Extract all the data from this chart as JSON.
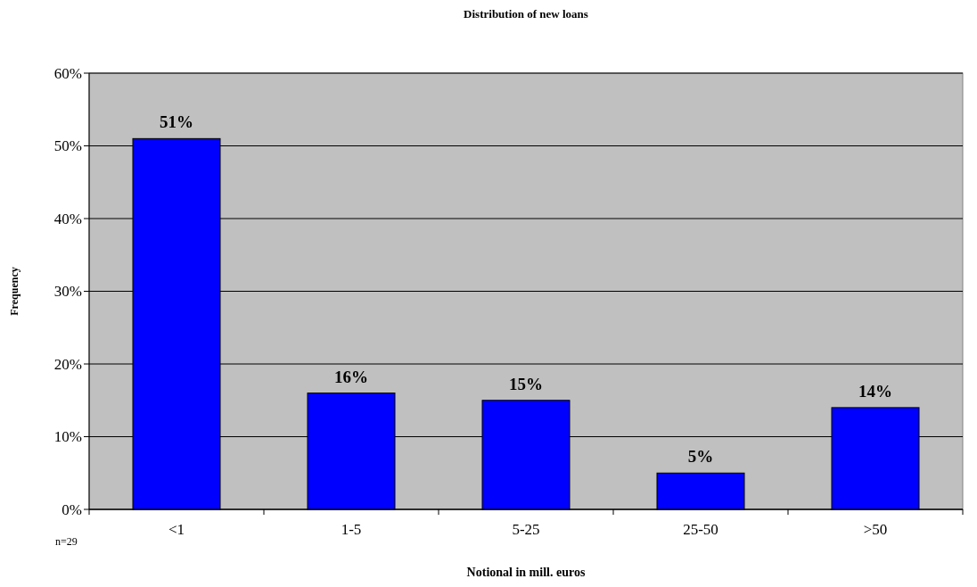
{
  "chart_data": {
    "type": "bar",
    "title": "Distribution of new loans",
    "xlabel": "Notional in mill. euros",
    "ylabel": "Frequency",
    "categories": [
      "<1",
      "1-5",
      "5-25",
      "25-50",
      ">50"
    ],
    "values": [
      51,
      16,
      15,
      5,
      14
    ],
    "color": "#0000ff",
    "value_labels": [
      "51%",
      "16%",
      "15%",
      "5%",
      "14%"
    ],
    "ylim": [
      0,
      60
    ],
    "yticks": [
      {
        "value": 0,
        "label": "0%"
      },
      {
        "value": 10,
        "label": "10%"
      },
      {
        "value": 20,
        "label": "20%"
      },
      {
        "value": 30,
        "label": "30%"
      },
      {
        "value": 40,
        "label": "40%"
      },
      {
        "value": 50,
        "label": "50%"
      },
      {
        "value": 60,
        "label": "60%"
      }
    ],
    "grid": "y",
    "annotations": [
      "n=29"
    ]
  }
}
